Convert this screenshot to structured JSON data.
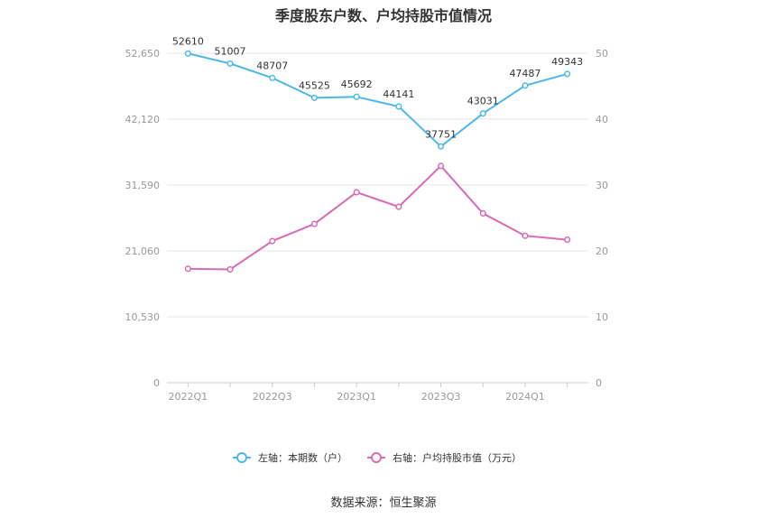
{
  "title": "季度股东户数、户均持股市值情况",
  "source": "数据来源：恒生聚源",
  "chart_data": {
    "type": "line",
    "categories": [
      "2022Q1",
      "2022Q2",
      "2022Q3",
      "2022Q4",
      "2023Q1",
      "2023Q2",
      "2023Q3",
      "2023Q4",
      "2024Q1",
      "2024Q2"
    ],
    "x_tick_labels": [
      "2022Q1",
      "2022Q3",
      "2023Q1",
      "2023Q3",
      "2024Q1"
    ],
    "y_left": {
      "ticks": [
        "0",
        "10,530",
        "21,060",
        "31,590",
        "42,120",
        "52,650"
      ],
      "range": [
        0,
        52650
      ]
    },
    "y_right": {
      "ticks": [
        "0",
        "10",
        "20",
        "30",
        "40",
        "50"
      ],
      "range": [
        0,
        50
      ]
    },
    "series": [
      {
        "name": "左轴：本期数（户）",
        "axis": "left",
        "color": "#4DB8E8",
        "values": [
          52610,
          51007,
          48707,
          45525,
          45692,
          44141,
          37751,
          43031,
          47487,
          49343
        ],
        "labels": [
          "52610",
          "51007",
          "48707",
          "45525",
          "45692",
          "44141",
          "37751",
          "43031",
          "47487",
          "49343"
        ]
      },
      {
        "name": "右轴：户均持股市值（万元）",
        "axis": "right",
        "color": "#D86BB3",
        "values": [
          17.3,
          17.2,
          21.5,
          24.1,
          28.9,
          26.7,
          32.9,
          25.7,
          22.3,
          21.7
        ]
      }
    ],
    "grid": true,
    "legend_position": "bottom"
  }
}
